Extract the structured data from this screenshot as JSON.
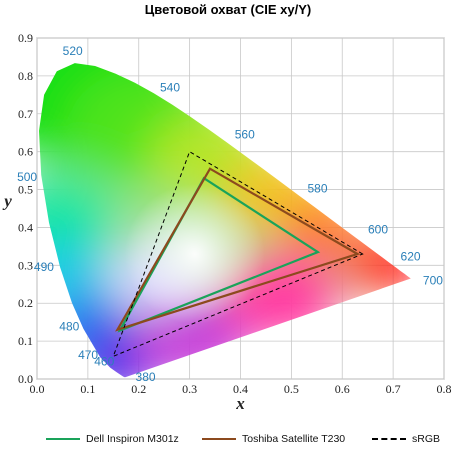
{
  "chart_data": {
    "type": "scatter",
    "title": "Цветовой охват (CIE xy/Y)",
    "xlabel": "x",
    "ylabel": "y",
    "xlim": [
      0,
      0.8
    ],
    "ylim": [
      0,
      0.9
    ],
    "grid": true,
    "legend_position": "bottom",
    "x_ticks": [
      "0.0",
      "0.1",
      "0.2",
      "0.3",
      "0.4",
      "0.5",
      "0.6",
      "0.7",
      "0.8"
    ],
    "y_ticks": [
      "0.0",
      "0.1",
      "0.2",
      "0.3",
      "0.4",
      "0.5",
      "0.6",
      "0.7",
      "0.8",
      "0.9"
    ],
    "wavelength_labels": [
      {
        "nm": "380",
        "x": 0.174,
        "y": 0.005
      },
      {
        "nm": "460",
        "x": 0.144,
        "y": 0.03
      },
      {
        "nm": "470",
        "x": 0.124,
        "y": 0.058
      },
      {
        "nm": "480",
        "x": 0.091,
        "y": 0.133
      },
      {
        "nm": "490",
        "x": 0.045,
        "y": 0.295
      },
      {
        "nm": "500",
        "x": 0.008,
        "y": 0.538
      },
      {
        "nm": "520",
        "x": 0.074,
        "y": 0.834
      },
      {
        "nm": "540",
        "x": 0.23,
        "y": 0.754
      },
      {
        "nm": "560",
        "x": 0.373,
        "y": 0.624
      },
      {
        "nm": "580",
        "x": 0.512,
        "y": 0.487
      },
      {
        "nm": "600",
        "x": 0.627,
        "y": 0.373
      },
      {
        "nm": "620",
        "x": 0.691,
        "y": 0.308
      },
      {
        "nm": "700",
        "x": 0.735,
        "y": 0.265
      }
    ],
    "series": [
      {
        "name": "Dell Inspiron M301z",
        "color": "#1aa35a",
        "points": [
          [
            0.552,
            0.335
          ],
          [
            0.328,
            0.53
          ],
          [
            0.163,
            0.128
          ]
        ]
      },
      {
        "name": "Toshiba Satellite T230",
        "color": "#8c4a1e",
        "points": [
          [
            0.63,
            0.33
          ],
          [
            0.34,
            0.555
          ],
          [
            0.158,
            0.13
          ]
        ]
      },
      {
        "name": "sRGB",
        "color": "#000000",
        "dash": true,
        "points": [
          [
            0.64,
            0.33
          ],
          [
            0.3,
            0.6
          ],
          [
            0.15,
            0.06
          ]
        ]
      }
    ]
  }
}
